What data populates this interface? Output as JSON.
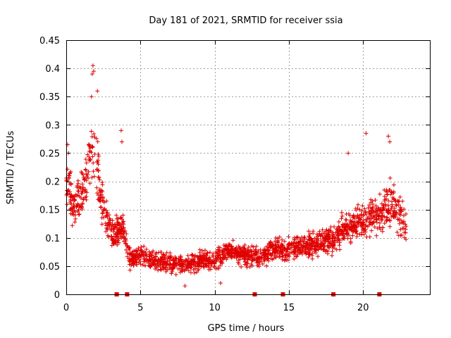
{
  "chart_data": {
    "type": "scatter",
    "title": "Day 181 of 2021, SRMTID for receiver ssia",
    "xlabel": "GPS time / hours",
    "ylabel": "SRMTID / TECUs",
    "xlim": [
      0,
      24.5
    ],
    "ylim": [
      0,
      0.45
    ],
    "xticks": [
      0,
      5,
      10,
      15,
      20
    ],
    "yticks": [
      0,
      0.05,
      0.1,
      0.15,
      0.2,
      0.25,
      0.3,
      0.35,
      0.4,
      0.45
    ],
    "xtick_labels": [
      "0",
      "5",
      "10",
      "15",
      "20"
    ],
    "ytick_labels": [
      "0",
      "0.05",
      "0.1",
      "0.15",
      "0.2",
      "0.25",
      "0.3",
      "0.35",
      "0.4",
      "0.45"
    ],
    "grid": true,
    "marker": "+",
    "color": "#e00000",
    "gap_markers_x": [
      3.4,
      4.1,
      12.7,
      14.6,
      18.0,
      21.1
    ],
    "trend": [
      [
        0.0,
        0.2
      ],
      [
        0.5,
        0.16
      ],
      [
        1.0,
        0.17
      ],
      [
        1.5,
        0.22
      ],
      [
        1.9,
        0.27
      ],
      [
        2.3,
        0.18
      ],
      [
        2.8,
        0.13
      ],
      [
        3.2,
        0.1
      ],
      [
        3.8,
        0.12
      ],
      [
        4.3,
        0.06
      ],
      [
        5.0,
        0.07
      ],
      [
        6.0,
        0.06
      ],
      [
        7.0,
        0.055
      ],
      [
        8.0,
        0.05
      ],
      [
        9.0,
        0.06
      ],
      [
        10.0,
        0.06
      ],
      [
        11.0,
        0.08
      ],
      [
        12.0,
        0.07
      ],
      [
        13.0,
        0.065
      ],
      [
        14.0,
        0.08
      ],
      [
        15.0,
        0.08
      ],
      [
        16.0,
        0.085
      ],
      [
        17.0,
        0.09
      ],
      [
        18.0,
        0.1
      ],
      [
        19.0,
        0.12
      ],
      [
        20.0,
        0.13
      ],
      [
        21.0,
        0.14
      ],
      [
        21.8,
        0.16
      ],
      [
        22.3,
        0.15
      ],
      [
        22.9,
        0.12
      ]
    ],
    "spread": [
      [
        0.0,
        0.05
      ],
      [
        1.5,
        0.08
      ],
      [
        2.0,
        0.09
      ],
      [
        2.5,
        0.05
      ],
      [
        3.5,
        0.04
      ],
      [
        4.5,
        0.025
      ],
      [
        8.0,
        0.022
      ],
      [
        12.0,
        0.025
      ],
      [
        16.0,
        0.03
      ],
      [
        19.0,
        0.04
      ],
      [
        21.0,
        0.05
      ],
      [
        22.9,
        0.05
      ]
    ],
    "extremes": [
      [
        1.8,
        0.405
      ],
      [
        1.85,
        0.395
      ],
      [
        1.75,
        0.39
      ],
      [
        2.1,
        0.36
      ],
      [
        1.7,
        0.35
      ],
      [
        0.1,
        0.265
      ],
      [
        0.15,
        0.25
      ],
      [
        3.7,
        0.29
      ],
      [
        3.75,
        0.27
      ],
      [
        20.2,
        0.285
      ],
      [
        21.7,
        0.28
      ],
      [
        21.8,
        0.27
      ],
      [
        19.0,
        0.25
      ],
      [
        8.0,
        0.015
      ],
      [
        10.4,
        0.02
      ]
    ],
    "point_count": 1900
  }
}
